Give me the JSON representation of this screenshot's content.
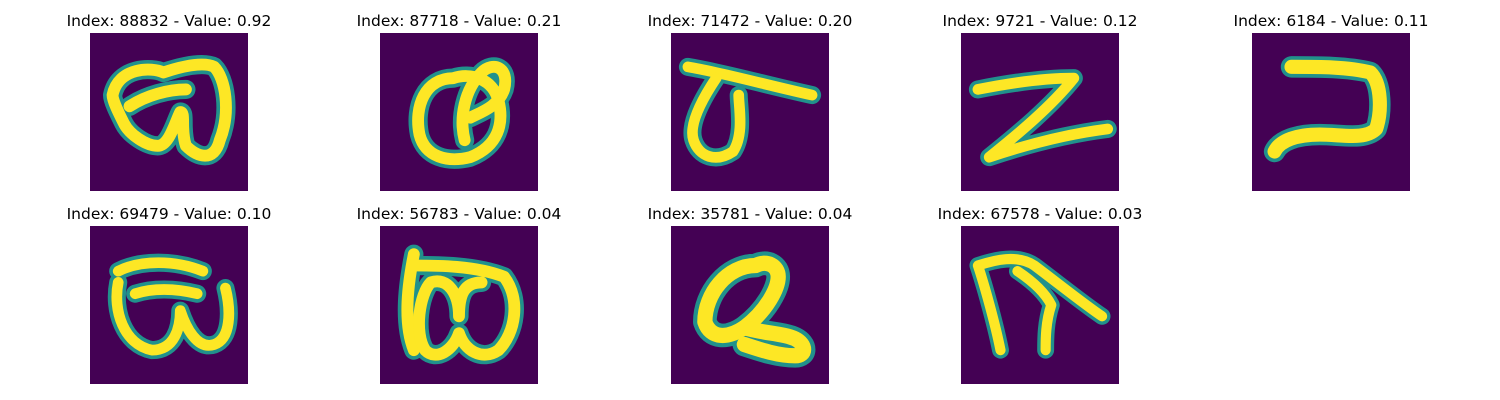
{
  "colors": {
    "background_cell": "#440154",
    "glow": "#21918c",
    "stroke": "#fde725",
    "title_text": "#000000"
  },
  "panels": [
    {
      "title": "Index: 88832 - Value: 0.92"
    },
    {
      "title": "Index: 87718 - Value: 0.21"
    },
    {
      "title": "Index: 71472 - Value: 0.20"
    },
    {
      "title": "Index: 9721 - Value: 0.12"
    },
    {
      "title": "Index: 6184 - Value: 0.11"
    },
    {
      "title": "Index: 69479 - Value: 0.10"
    },
    {
      "title": "Index: 56783 - Value: 0.04"
    },
    {
      "title": "Index: 35781 - Value: 0.04"
    },
    {
      "title": "Index: 67578 - Value: 0.03"
    }
  ]
}
